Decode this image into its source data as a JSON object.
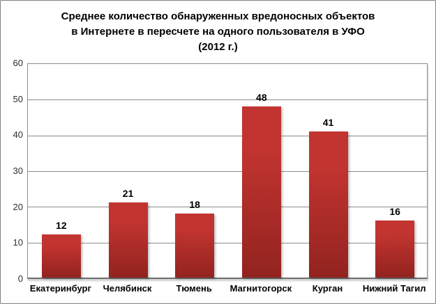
{
  "window": {
    "background_color": "#ffffff",
    "border_color": "#808080"
  },
  "chart_data": {
    "type": "bar",
    "title": "Среднее количество обнаруженных вредоносных объектов\nв Интернете в пересчете на одного пользователя в УФО\n(2012 г.)",
    "categories": [
      "Екатеринбург",
      "Челябинск",
      "Тюмень",
      "Магнитогорск",
      "Курган",
      "Нижний Тагил"
    ],
    "values": [
      12,
      21,
      18,
      48,
      41,
      16
    ],
    "xlabel": "",
    "ylabel": "",
    "ylim": [
      0,
      60
    ],
    "yticks": [
      0,
      10,
      20,
      30,
      40,
      50,
      60
    ],
    "grid": true,
    "legend_position": "none",
    "data_labels_shown": true,
    "bar_color_top": "#c23430",
    "bar_color_bottom": "#92231f",
    "gridline_color": "#8c8c8c",
    "axis_text_color": "#2e2e2e",
    "label_text_color": "#000000"
  }
}
